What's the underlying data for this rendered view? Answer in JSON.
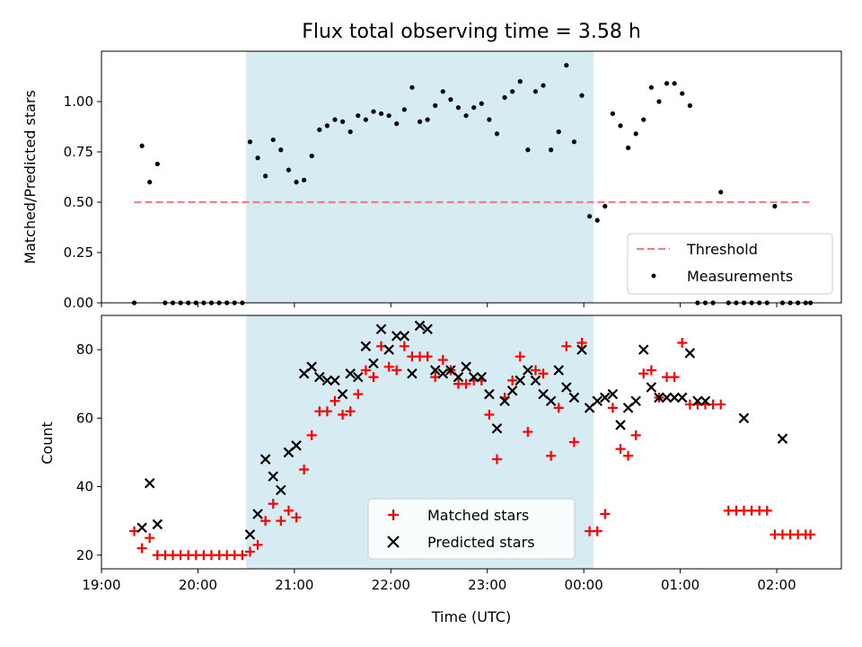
{
  "chart_data": [
    {
      "type": "scatter",
      "title": "Flux total observing time = 3.58 h",
      "xlabel": "",
      "ylabel": "Matched/Predicted stars",
      "xlim": [
        0.0,
        7.67
      ],
      "ylim": [
        0.0,
        1.25
      ],
      "x_ticks": [
        0,
        1,
        2,
        3,
        4,
        5,
        6,
        7
      ],
      "x_tick_labels": [
        "",
        "",
        "",
        "",
        "",
        "",
        "",
        ""
      ],
      "y_ticks": [
        0.0,
        0.25,
        0.5,
        0.75,
        1.0
      ],
      "y_tick_labels": [
        "0.00",
        "0.25",
        "0.50",
        "0.75",
        "1.00"
      ],
      "shaded_span": [
        1.5,
        5.1
      ],
      "shade_color": "#add8e6",
      "threshold": {
        "name": "Threshold",
        "value": 0.5,
        "x_range": [
          0.34,
          7.35
        ],
        "color": "#f08080"
      },
      "series": [
        {
          "name": "Measurements",
          "color": "#000000",
          "x": [
            0.34,
            0.42,
            0.5,
            0.58,
            0.66,
            0.74,
            0.82,
            0.9,
            0.98,
            1.06,
            1.14,
            1.22,
            1.3,
            1.38,
            1.46,
            1.54,
            1.62,
            1.7,
            1.78,
            1.86,
            1.94,
            2.02,
            2.1,
            2.18,
            2.26,
            2.34,
            2.42,
            2.5,
            2.58,
            2.66,
            2.74,
            2.82,
            2.9,
            2.98,
            3.06,
            3.14,
            3.22,
            3.3,
            3.38,
            3.46,
            3.54,
            3.62,
            3.7,
            3.78,
            3.86,
            3.94,
            4.02,
            4.1,
            4.18,
            4.26,
            4.34,
            4.42,
            4.5,
            4.58,
            4.66,
            4.74,
            4.82,
            4.9,
            4.98,
            5.06,
            5.14,
            5.22,
            5.3,
            5.38,
            5.46,
            5.54,
            5.62,
            5.7,
            5.78,
            5.86,
            5.94,
            6.02,
            6.1,
            6.18,
            6.26,
            6.34,
            6.42,
            6.5,
            6.58,
            6.66,
            6.74,
            6.82,
            6.9,
            6.98,
            7.06,
            7.14,
            7.22,
            7.3,
            7.35
          ],
          "y": [
            0.0,
            0.78,
            0.6,
            0.69,
            0.0,
            0.0,
            0.0,
            0.0,
            0.0,
            0.0,
            0.0,
            0.0,
            0.0,
            0.0,
            0.0,
            0.8,
            0.72,
            0.63,
            0.81,
            0.76,
            0.66,
            0.6,
            0.61,
            0.73,
            0.86,
            0.88,
            0.91,
            0.9,
            0.85,
            0.93,
            0.91,
            0.95,
            0.94,
            0.93,
            0.89,
            0.96,
            1.07,
            0.9,
            0.91,
            0.98,
            1.05,
            1.01,
            0.97,
            0.93,
            0.97,
            0.99,
            0.91,
            0.84,
            1.02,
            1.05,
            1.1,
            0.76,
            1.05,
            1.08,
            0.76,
            0.85,
            1.18,
            0.8,
            1.03,
            0.43,
            0.41,
            0.48,
            0.94,
            0.88,
            0.77,
            0.84,
            0.91,
            1.07,
            1.0,
            1.09,
            1.09,
            1.04,
            0.98,
            0.0,
            0.0,
            0.0,
            0.55,
            0.0,
            0.0,
            0.0,
            0.0,
            0.0,
            0.0,
            0.48,
            0.0,
            0.0,
            0.0,
            0.0,
            0.0
          ]
        }
      ],
      "legend": [
        "Threshold",
        "Measurements"
      ],
      "legend_position": "lower right",
      "grid": false
    },
    {
      "type": "scatter",
      "title": "",
      "xlabel": "Time (UTC)",
      "ylabel": "Count",
      "xlim": [
        0.0,
        7.67
      ],
      "ylim": [
        16,
        90
      ],
      "x_ticks": [
        0,
        1,
        2,
        3,
        4,
        5,
        6,
        7
      ],
      "x_tick_labels": [
        "19:00",
        "20:00",
        "21:00",
        "22:00",
        "23:00",
        "00:00",
        "01:00",
        "02:00"
      ],
      "y_ticks": [
        20,
        40,
        60,
        80
      ],
      "y_tick_labels": [
        "20",
        "40",
        "60",
        "80"
      ],
      "shaded_span": [
        1.5,
        5.1
      ],
      "shade_color": "#add8e6",
      "series": [
        {
          "name": "Matched stars",
          "marker": "+",
          "color": "#ff0000",
          "x": [
            0.34,
            0.42,
            0.5,
            0.58,
            0.66,
            0.74,
            0.82,
            0.9,
            0.98,
            1.06,
            1.14,
            1.22,
            1.3,
            1.38,
            1.46,
            1.54,
            1.62,
            1.7,
            1.78,
            1.86,
            1.94,
            2.02,
            2.1,
            2.18,
            2.26,
            2.34,
            2.42,
            2.5,
            2.58,
            2.66,
            2.74,
            2.82,
            2.9,
            2.98,
            3.06,
            3.14,
            3.22,
            3.3,
            3.38,
            3.46,
            3.54,
            3.62,
            3.7,
            3.78,
            3.86,
            3.94,
            4.02,
            4.1,
            4.18,
            4.26,
            4.34,
            4.42,
            4.5,
            4.58,
            4.66,
            4.74,
            4.82,
            4.9,
            4.98,
            5.06,
            5.14,
            5.22,
            5.3,
            5.38,
            5.46,
            5.54,
            5.62,
            5.7,
            5.78,
            5.86,
            5.94,
            6.02,
            6.1,
            6.18,
            6.26,
            6.34,
            6.42,
            6.5,
            6.58,
            6.66,
            6.74,
            6.82,
            6.9,
            6.98,
            7.06,
            7.14,
            7.22,
            7.3,
            7.35
          ],
          "y": [
            27,
            22,
            25,
            20,
            20,
            20,
            20,
            20,
            20,
            20,
            20,
            20,
            20,
            20,
            20,
            21,
            23,
            30,
            35,
            30,
            33,
            31,
            45,
            55,
            62,
            62,
            65,
            61,
            62,
            67,
            74,
            72,
            81,
            75,
            74,
            81,
            78,
            78,
            78,
            72,
            77,
            74,
            70,
            70,
            71,
            71,
            61,
            48,
            66,
            71,
            78,
            56,
            74,
            73,
            49,
            63,
            81,
            53,
            82,
            27,
            27,
            32,
            63,
            51,
            49,
            55,
            73,
            74,
            66,
            72,
            72,
            82,
            64,
            64,
            64,
            64,
            64,
            33,
            33,
            33,
            33,
            33,
            33,
            26,
            26,
            26,
            26,
            26,
            26
          ]
        },
        {
          "name": "Predicted stars",
          "marker": "x",
          "color": "#000000",
          "x": [
            0.42,
            0.5,
            0.58,
            1.54,
            1.62,
            1.7,
            1.78,
            1.86,
            1.94,
            2.02,
            2.1,
            2.18,
            2.26,
            2.34,
            2.42,
            2.5,
            2.58,
            2.66,
            2.74,
            2.82,
            2.9,
            2.98,
            3.06,
            3.14,
            3.22,
            3.3,
            3.38,
            3.46,
            3.54,
            3.62,
            3.7,
            3.78,
            3.86,
            3.94,
            4.02,
            4.1,
            4.18,
            4.26,
            4.34,
            4.42,
            4.5,
            4.58,
            4.66,
            4.74,
            4.82,
            4.9,
            4.98,
            5.06,
            5.14,
            5.22,
            5.3,
            5.38,
            5.46,
            5.54,
            5.62,
            5.7,
            5.78,
            5.86,
            5.94,
            6.02,
            6.1,
            6.18,
            6.26,
            6.66,
            7.06
          ],
          "y": [
            28,
            41,
            29,
            26,
            32,
            48,
            43,
            39,
            50,
            52,
            73,
            75,
            72,
            71,
            71,
            67,
            73,
            72,
            81,
            76,
            86,
            80,
            84,
            84,
            73,
            87,
            86,
            74,
            73,
            74,
            72,
            75,
            72,
            72,
            67,
            57,
            65,
            68,
            71,
            74,
            71,
            67,
            65,
            74,
            69,
            66,
            80,
            63,
            65,
            66,
            67,
            58,
            63,
            65,
            80,
            69,
            66,
            66,
            66,
            66,
            79,
            65,
            65,
            60,
            54
          ]
        }
      ],
      "legend": [
        "Matched stars",
        "Predicted stars"
      ],
      "legend_position": "lower center",
      "grid": false
    }
  ]
}
